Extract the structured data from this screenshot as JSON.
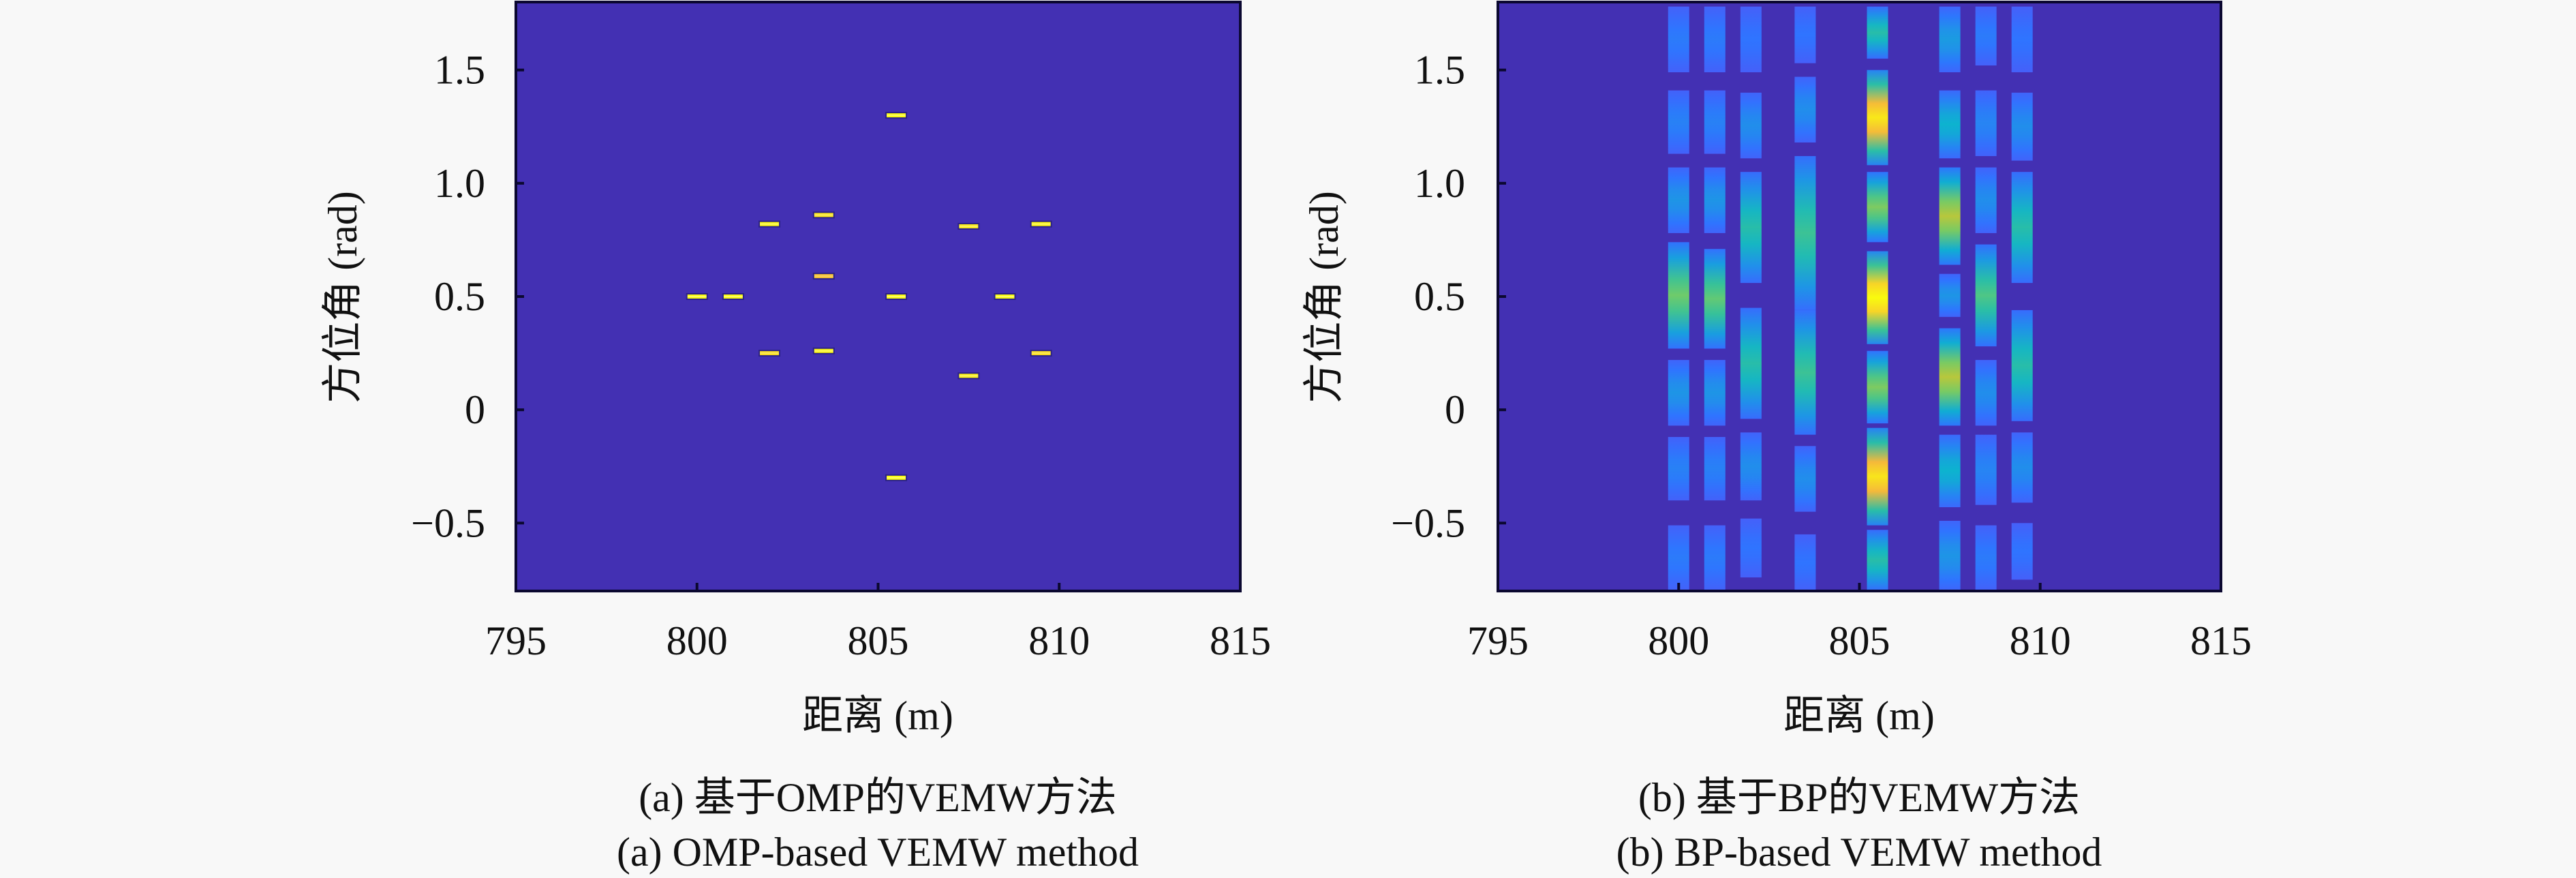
{
  "colors": {
    "page_background": "#f8f8f8",
    "axes_background": "#4330b3",
    "axes_border": "#0b0830",
    "marker_core": "#f0f04a",
    "colormap": [
      "#4330b3",
      "#4f56f6",
      "#2f74ff",
      "#1e95e6",
      "#0db3cf",
      "#2fc0a0",
      "#6fcb6a",
      "#b8c73c",
      "#f5b93a",
      "#f8e01e",
      "#f9fb0e"
    ]
  },
  "chart_data": [
    {
      "id": "a",
      "type": "heatmap",
      "title": "",
      "xlabel": "距离 (m)",
      "ylabel": "方位角 (rad)",
      "xlim": [
        795,
        815
      ],
      "ylim": [
        -0.8,
        1.8
      ],
      "xticks": [
        795,
        800,
        805,
        810,
        815
      ],
      "xtick_labels": [
        "795",
        "800",
        "805",
        "810",
        "815"
      ],
      "yticks": [
        -0.5,
        0,
        0.5,
        1.0,
        1.5
      ],
      "ytick_labels": [
        "−0.5",
        "0",
        "0.5",
        "1.0",
        "1.5"
      ],
      "grid": false,
      "caption_cn": "(a) 基于OMP的VEMW方法",
      "caption_en": "(a) OMP-based VEMW method",
      "points": [
        {
          "range": 805.5,
          "angle": 1.3,
          "intensity": 1.0
        },
        {
          "range": 802.0,
          "angle": 0.82,
          "intensity": 0.95
        },
        {
          "range": 803.5,
          "angle": 0.86,
          "intensity": 0.8
        },
        {
          "range": 807.5,
          "angle": 0.81,
          "intensity": 0.85
        },
        {
          "range": 809.5,
          "angle": 0.82,
          "intensity": 0.95
        },
        {
          "range": 803.5,
          "angle": 0.59,
          "intensity": 0.6
        },
        {
          "range": 800.0,
          "angle": 0.5,
          "intensity": 1.0
        },
        {
          "range": 801.0,
          "angle": 0.5,
          "intensity": 1.0
        },
        {
          "range": 805.5,
          "angle": 0.5,
          "intensity": 1.0
        },
        {
          "range": 808.5,
          "angle": 0.5,
          "intensity": 1.0
        },
        {
          "range": 802.0,
          "angle": 0.25,
          "intensity": 0.75
        },
        {
          "range": 803.5,
          "angle": 0.26,
          "intensity": 0.95
        },
        {
          "range": 809.5,
          "angle": 0.25,
          "intensity": 0.75
        },
        {
          "range": 807.5,
          "angle": 0.15,
          "intensity": 0.9
        },
        {
          "range": 805.5,
          "angle": -0.3,
          "intensity": 1.0
        }
      ]
    },
    {
      "id": "b",
      "type": "heatmap",
      "title": "",
      "xlabel": "距离 (m)",
      "ylabel": "方位角 (rad)",
      "xlim": [
        795,
        815
      ],
      "ylim": [
        -0.8,
        1.8
      ],
      "xticks": [
        795,
        800,
        805,
        810,
        815
      ],
      "xtick_labels": [
        "795",
        "800",
        "805",
        "810",
        "815"
      ],
      "yticks": [
        -0.5,
        0,
        0.5,
        1.0,
        1.5
      ],
      "ytick_labels": [
        "−0.5",
        "0",
        "0.5",
        "1.0",
        "1.5"
      ],
      "grid": false,
      "caption_cn": "(b) 基于BP的VEMW方法",
      "caption_en": "(b) BP-based VEMW method",
      "columns": [
        {
          "range": 800.0,
          "segments": [
            {
              "angle_min": 1.49,
              "angle_max": 1.78,
              "peak": 0.22
            },
            {
              "angle_min": 1.13,
              "angle_max": 1.41,
              "peak": 0.24
            },
            {
              "angle_min": 0.78,
              "angle_max": 1.07,
              "peak": 0.3
            },
            {
              "angle_min": 0.27,
              "angle_max": 0.74,
              "peak": 0.6
            },
            {
              "angle_min": -0.07,
              "angle_max": 0.22,
              "peak": 0.3
            },
            {
              "angle_min": -0.4,
              "angle_max": -0.12,
              "peak": 0.24
            },
            {
              "angle_min": -0.8,
              "angle_max": -0.51,
              "peak": 0.22
            }
          ]
        },
        {
          "range": 801.0,
          "segments": [
            {
              "angle_min": 1.49,
              "angle_max": 1.78,
              "peak": 0.22
            },
            {
              "angle_min": 1.13,
              "angle_max": 1.41,
              "peak": 0.24
            },
            {
              "angle_min": 0.78,
              "angle_max": 1.07,
              "peak": 0.3
            },
            {
              "angle_min": 0.27,
              "angle_max": 0.71,
              "peak": 0.58
            },
            {
              "angle_min": -0.07,
              "angle_max": 0.22,
              "peak": 0.3
            },
            {
              "angle_min": -0.4,
              "angle_max": -0.12,
              "peak": 0.24
            },
            {
              "angle_min": -0.8,
              "angle_max": -0.51,
              "peak": 0.22
            }
          ]
        },
        {
          "range": 802.0,
          "segments": [
            {
              "angle_min": 1.49,
              "angle_max": 1.78,
              "peak": 0.2
            },
            {
              "angle_min": 1.11,
              "angle_max": 1.4,
              "peak": 0.28
            },
            {
              "angle_min": 0.56,
              "angle_max": 1.05,
              "peak": 0.48
            },
            {
              "angle_min": -0.04,
              "angle_max": 0.45,
              "peak": 0.48
            },
            {
              "angle_min": -0.4,
              "angle_max": -0.1,
              "peak": 0.28
            },
            {
              "angle_min": -0.74,
              "angle_max": -0.48,
              "peak": 0.2
            }
          ]
        },
        {
          "range": 803.5,
          "segments": [
            {
              "angle_min": 1.53,
              "angle_max": 1.78,
              "peak": 0.2
            },
            {
              "angle_min": 1.18,
              "angle_max": 1.47,
              "peak": 0.28
            },
            {
              "angle_min": 0.44,
              "angle_max": 1.12,
              "peak": 0.52
            },
            {
              "angle_min": -0.11,
              "angle_max": 0.44,
              "peak": 0.52
            },
            {
              "angle_min": -0.45,
              "angle_max": -0.16,
              "peak": 0.28
            },
            {
              "angle_min": -0.8,
              "angle_max": -0.55,
              "peak": 0.2
            }
          ]
        },
        {
          "range": 805.5,
          "segments": [
            {
              "angle_min": 1.55,
              "angle_max": 1.78,
              "peak": 0.48
            },
            {
              "angle_min": 1.08,
              "angle_max": 1.5,
              "peak": 0.93
            },
            {
              "angle_min": 0.74,
              "angle_max": 1.05,
              "peak": 0.62
            },
            {
              "angle_min": 0.29,
              "angle_max": 0.7,
              "peak": 1.0
            },
            {
              "angle_min": -0.06,
              "angle_max": 0.26,
              "peak": 0.62
            },
            {
              "angle_min": -0.51,
              "angle_max": -0.08,
              "peak": 0.92
            },
            {
              "angle_min": -0.8,
              "angle_max": -0.53,
              "peak": 0.48
            }
          ]
        },
        {
          "range": 807.5,
          "segments": [
            {
              "angle_min": 1.49,
              "angle_max": 1.78,
              "peak": 0.32
            },
            {
              "angle_min": 1.11,
              "angle_max": 1.41,
              "peak": 0.4
            },
            {
              "angle_min": 0.64,
              "angle_max": 1.07,
              "peak": 0.7
            },
            {
              "angle_min": 0.41,
              "angle_max": 0.6,
              "peak": 0.3
            },
            {
              "angle_min": -0.07,
              "angle_max": 0.36,
              "peak": 0.7
            },
            {
              "angle_min": -0.43,
              "angle_max": -0.11,
              "peak": 0.4
            },
            {
              "angle_min": -0.8,
              "angle_max": -0.49,
              "peak": 0.3
            }
          ]
        },
        {
          "range": 808.5,
          "segments": [
            {
              "angle_min": 1.52,
              "angle_max": 1.78,
              "peak": 0.22
            },
            {
              "angle_min": 1.12,
              "angle_max": 1.41,
              "peak": 0.25
            },
            {
              "angle_min": 0.78,
              "angle_max": 1.07,
              "peak": 0.28
            },
            {
              "angle_min": 0.28,
              "angle_max": 0.73,
              "peak": 0.55
            },
            {
              "angle_min": -0.07,
              "angle_max": 0.22,
              "peak": 0.28
            },
            {
              "angle_min": -0.42,
              "angle_max": -0.11,
              "peak": 0.25
            },
            {
              "angle_min": -0.8,
              "angle_max": -0.51,
              "peak": 0.22
            }
          ]
        },
        {
          "range": 809.5,
          "segments": [
            {
              "angle_min": 1.49,
              "angle_max": 1.78,
              "peak": 0.2
            },
            {
              "angle_min": 1.1,
              "angle_max": 1.4,
              "peak": 0.28
            },
            {
              "angle_min": 0.56,
              "angle_max": 1.05,
              "peak": 0.48
            },
            {
              "angle_min": -0.05,
              "angle_max": 0.44,
              "peak": 0.48
            },
            {
              "angle_min": -0.41,
              "angle_max": -0.1,
              "peak": 0.28
            },
            {
              "angle_min": -0.75,
              "angle_max": -0.5,
              "peak": 0.2
            }
          ]
        }
      ]
    }
  ]
}
